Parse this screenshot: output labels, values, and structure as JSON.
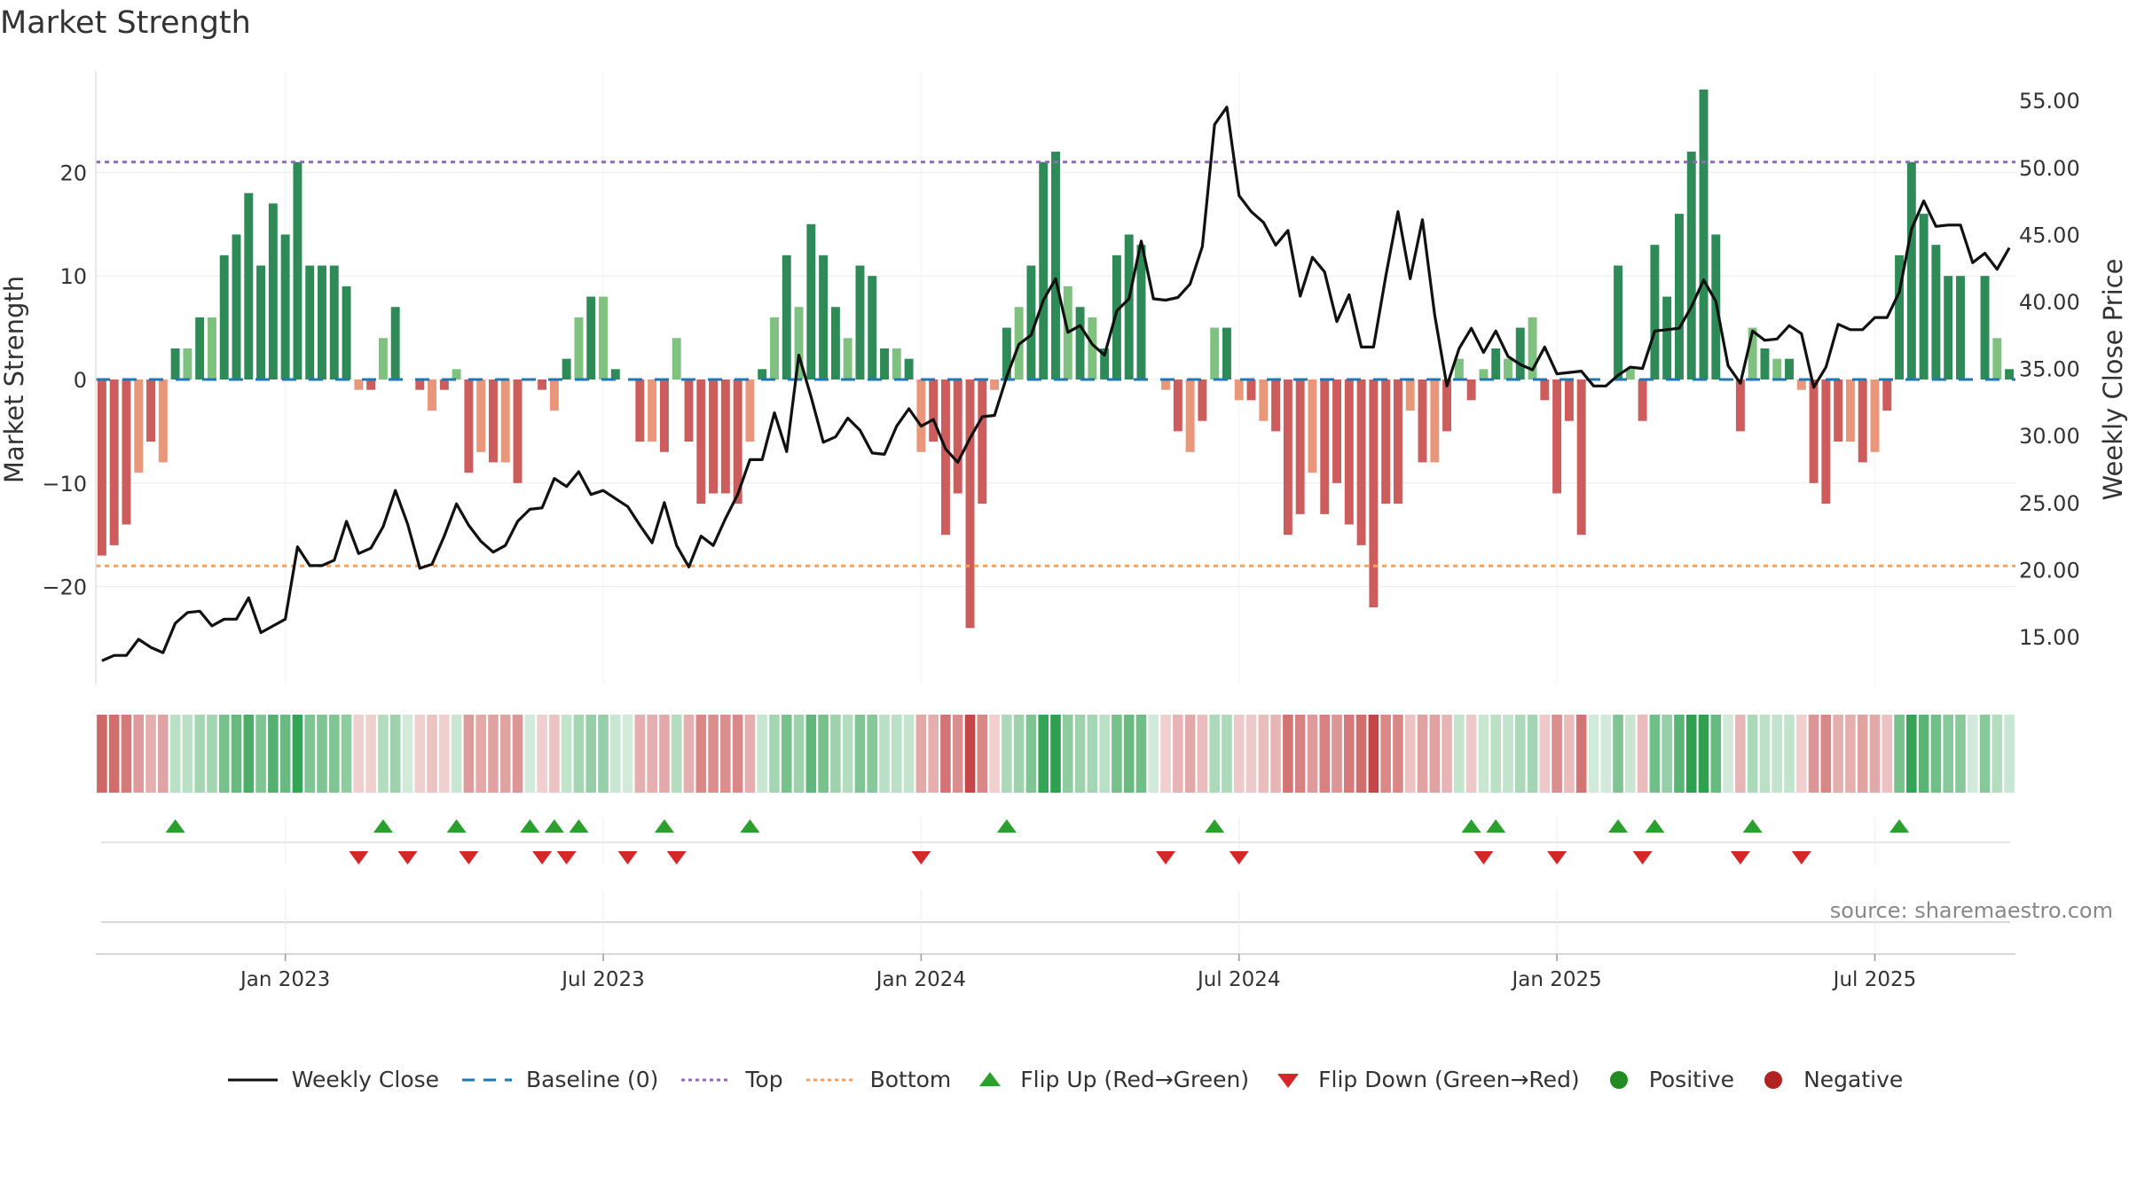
{
  "chart_data": {
    "type": "bar",
    "title": "Market Strength",
    "ylabel_left": "Market Strength",
    "ylabel_right": "Weekly Close Price",
    "ylim_left": [
      -30,
      30
    ],
    "ylim_right": [
      10,
      58
    ],
    "yticks_left": [
      20,
      10,
      0,
      -10,
      -20
    ],
    "ytick_labels_left": [
      "20",
      "10",
      "0",
      "−10",
      "−20"
    ],
    "yticks_right": [
      55,
      50,
      45,
      40,
      35,
      30,
      25,
      20,
      15
    ],
    "ytick_labels_right": [
      "55.00",
      "50.00",
      "45.00",
      "40.00",
      "35.00",
      "30.00",
      "25.00",
      "20.00",
      "15.00"
    ],
    "top_threshold": 21,
    "bottom_threshold": -18,
    "x_tick_labels": [
      "Jan 2023",
      "Jul 2023",
      "Jan 2024",
      "Jul 2024",
      "Jan 2025",
      "Jul 2025"
    ],
    "x_tick_weeks": [
      15,
      41,
      67,
      93,
      119,
      145
    ],
    "strength": [
      -17,
      -16,
      -14,
      -9,
      -6,
      -8,
      3,
      3,
      6,
      6,
      12,
      14,
      18,
      11,
      17,
      14,
      21,
      11,
      11,
      11,
      9,
      -1,
      -1,
      4,
      7,
      0,
      -1,
      -3,
      -1,
      1,
      -9,
      -7,
      -8,
      -8,
      -10,
      0,
      -1,
      -3,
      2,
      6,
      8,
      8,
      1,
      0,
      -6,
      -6,
      -7,
      4,
      -6,
      -12,
      -11,
      -11,
      -12,
      -6,
      1,
      6,
      12,
      7,
      15,
      12,
      7,
      4,
      11,
      10,
      3,
      3,
      2,
      -7,
      -6,
      -15,
      -11,
      -24,
      -12,
      -1,
      5,
      7,
      11,
      21,
      22,
      9,
      7,
      6,
      3,
      12,
      14,
      13,
      0,
      -1,
      -5,
      -7,
      -4,
      5,
      5,
      -2,
      -2,
      -4,
      -5,
      -15,
      -13,
      -9,
      -13,
      -10,
      -14,
      -16,
      -22,
      -12,
      -12,
      -3,
      -8,
      -8,
      -5,
      2,
      -2,
      1,
      3,
      2,
      5,
      6,
      -2,
      -11,
      -4,
      -15,
      0,
      0,
      11,
      1,
      -4,
      13,
      8,
      16,
      22,
      28,
      14,
      0,
      -5,
      5,
      3,
      2,
      2,
      -1,
      -10,
      -12,
      -6,
      -6,
      -8,
      -7,
      -3,
      12,
      21,
      16,
      13,
      10,
      10,
      0,
      10,
      4,
      1
    ],
    "weekly_close": [
      13.2,
      13.6,
      13.6,
      14.8,
      14.2,
      13.8,
      16.0,
      16.8,
      16.9,
      15.8,
      16.3,
      16.3,
      17.9,
      15.3,
      15.8,
      16.3,
      21.7,
      20.3,
      20.3,
      20.7,
      23.6,
      21.2,
      21.6,
      23.2,
      25.9,
      23.4,
      20.1,
      20.4,
      22.5,
      24.9,
      23.3,
      22.1,
      21.3,
      21.8,
      23.6,
      24.5,
      24.6,
      26.8,
      26.2,
      27.3,
      25.6,
      25.9,
      25.3,
      24.7,
      23.3,
      22.0,
      25.0,
      21.8,
      20.2,
      22.5,
      21.8,
      23.8,
      25.6,
      28.2,
      28.2,
      31.7,
      28.8,
      36.0,
      32.9,
      29.5,
      29.9,
      31.3,
      30.4,
      28.7,
      28.6,
      30.7,
      32.0,
      30.7,
      31.2,
      29.0,
      28.0,
      29.8,
      31.4,
      31.5,
      34.4,
      36.8,
      37.5,
      40.1,
      41.7,
      37.7,
      38.2,
      36.8,
      36.0,
      39.3,
      40.2,
      44.5,
      40.2,
      40.1,
      40.3,
      41.3,
      44.1,
      53.2,
      54.5,
      47.9,
      46.7,
      45.9,
      44.2,
      45.3,
      40.4,
      43.3,
      42.2,
      38.5,
      40.5,
      36.6,
      36.6,
      41.9,
      46.7,
      41.7,
      46.1,
      39.0,
      33.7,
      36.5,
      38.0,
      36.2,
      37.8,
      35.9,
      35.3,
      34.9,
      36.6,
      34.6,
      34.7,
      34.8,
      33.7,
      33.7,
      34.5,
      35.1,
      35.0,
      37.8,
      37.9,
      38.0,
      39.6,
      41.6,
      40.0,
      35.2,
      33.9,
      37.8,
      37.1,
      37.2,
      38.2,
      37.6,
      33.6,
      35.1,
      38.3,
      37.9,
      37.9,
      38.8,
      38.8,
      40.7,
      45.4,
      47.5,
      45.6,
      45.7,
      45.7,
      42.9,
      43.6,
      42.4,
      44.0
    ],
    "flip_up_weeks": [
      6,
      23,
      29,
      35,
      37,
      39,
      46,
      53,
      74,
      91,
      112,
      114,
      124,
      127,
      135,
      147
    ],
    "flip_down_weeks": [
      21,
      25,
      30,
      36,
      38,
      43,
      47,
      67,
      87,
      93,
      113,
      119,
      126,
      134,
      139
    ],
    "series": [
      "Weekly Close",
      "Baseline (0)",
      "Top",
      "Bottom",
      "Flip Up (Red→Green)",
      "Flip Down (Green→Red)",
      "Positive",
      "Negative"
    ]
  },
  "legend": {
    "weekly_close": "Weekly Close",
    "baseline": "Baseline (0)",
    "top": "Top",
    "bottom": "Bottom",
    "flip_up": "Flip Up (Red→Green)",
    "flip_down": "Flip Down (Green→Red)",
    "positive": "Positive",
    "negative": "Negative"
  },
  "source": "source: sharemaestro.com",
  "colors": {
    "pos_strong": "#2e8b57",
    "pos_light": "#7fc280",
    "neg_strong": "#cd5c5c",
    "neg_light": "#e9967a",
    "price": "#111111",
    "top": "#9467bd",
    "bottom": "#f4a261",
    "baseline": "#1f77b4",
    "flip_up": "#2ca02c",
    "flip_down": "#d62728",
    "positive_dot": "#228b22",
    "negative_dot": "#b22222"
  }
}
